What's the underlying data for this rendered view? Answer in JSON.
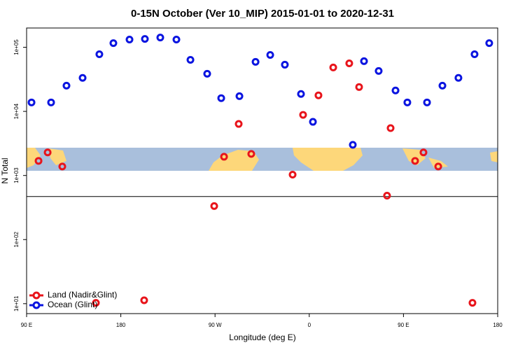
{
  "chart_data": {
    "type": "scatter",
    "title": "0-15N October (Ver 10_MIP)   2015-01-01 to 2020-12-31",
    "x_label": "Longitude (deg E)",
    "y_label": "N Total",
    "log_y": true,
    "legend": "bottom-left",
    "hline": 470,
    "xlim": [
      90,
      540
    ],
    "xticks": [
      {
        "value": 90,
        "label": "90 E"
      },
      180,
      {
        "value": 270,
        "label": "90 W"
      },
      {
        "value": 360,
        "label": "0"
      },
      {
        "value": 450,
        "label": "90 E"
      },
      180
    ],
    "ylim": [
      7,
      200000
    ],
    "yticks": [
      {
        "value": 100000,
        "label": "1e+05"
      },
      {
        "value": 10000,
        "label": "1e+04"
      },
      {
        "value": 1000,
        "label": "1e+03"
      },
      {
        "value": 100,
        "label": "1e+02"
      },
      {
        "value": 10,
        "label": "1e+01"
      }
    ],
    "series": [
      {
        "name": "Land (Nadir&Glint)",
        "color": "#e8141b",
        "x": [
          101.4,
          110.1,
          124.1,
          156.2,
          202.3,
          269.2,
          278.6,
          292.6,
          304.6,
          344.1,
          354.1,
          368.8,
          382.9,
          398.2,
          407.6,
          434.3,
          437.7,
          461.1,
          469.1,
          483.2,
          515.9
        ],
        "values": [
          1690,
          2290,
          1380,
          10.3,
          11.3,
          333,
          1960,
          6370,
          2170,
          1030,
          8830,
          17800,
          48400,
          56200,
          24000,
          484,
          5480,
          1690,
          2290,
          1380,
          10.3
        ]
      },
      {
        "name": "Ocean (Glint)",
        "color": "#0a14e0",
        "x": [
          94.7,
          113.4,
          128.1,
          143.5,
          159.5,
          172.9,
          188.3,
          203.0,
          217.7,
          233.1,
          246.5,
          262.5,
          275.9,
          293.3,
          308.7,
          322.7,
          336.7,
          352.1,
          363.5,
          401.6,
          412.3,
          426.3,
          442.4,
          453.7,
          472.5,
          487.2,
          502.5,
          517.9,
          531.9
        ],
        "values": [
          13800,
          13800,
          25200,
          33300,
          77900,
          116000,
          132000,
          135000,
          142000,
          132000,
          63700,
          38600,
          16100,
          17300,
          59200,
          75900,
          53500,
          18700,
          6870,
          3010,
          60700,
          42700,
          21200,
          13800,
          13800,
          25200,
          33300,
          77900,
          116000
        ]
      }
    ]
  }
}
